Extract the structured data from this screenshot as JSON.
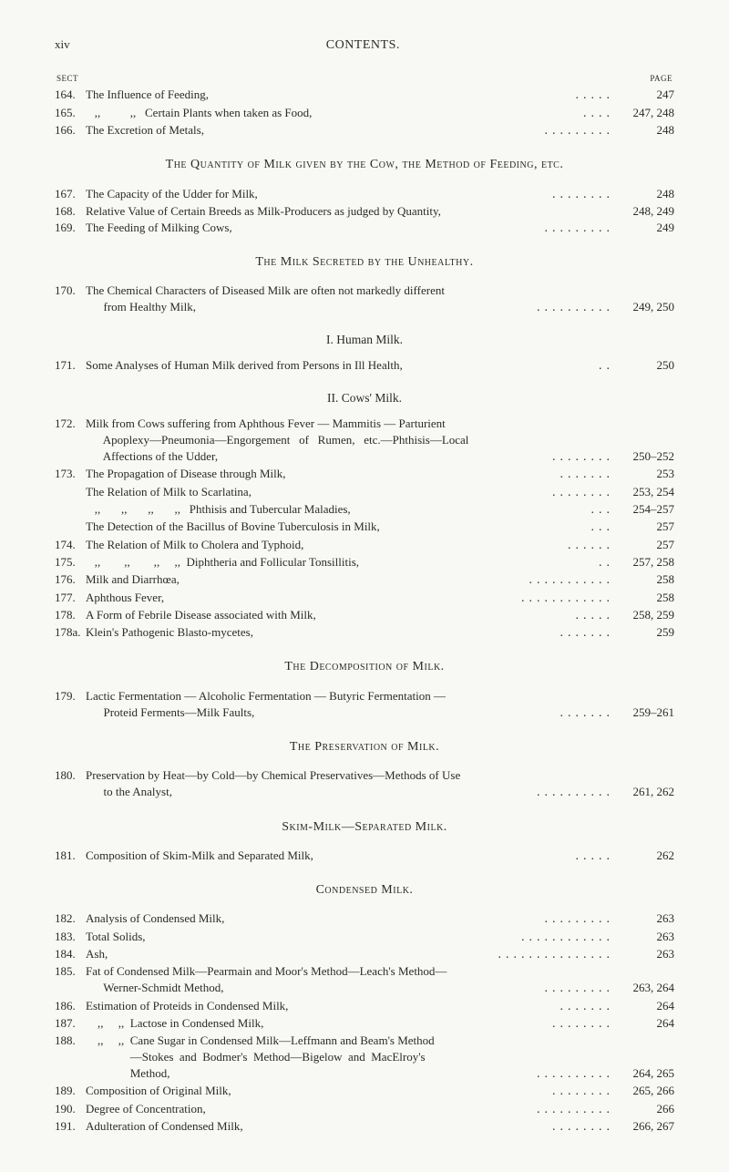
{
  "header": {
    "page_num": "xiv",
    "title": "CONTENTS."
  },
  "col_labels": {
    "left": "SECT",
    "right": "PAGE"
  },
  "block1": [
    {
      "sect": "164.",
      "desc": "The Influence of Feeding,",
      "dots": ".....",
      "pg": "247"
    },
    {
      "sect": "165.",
      "desc": "   ,,          ,,   Certain Plants when taken as Food,",
      "dots": "....",
      "pg": "247, 248"
    },
    {
      "sect": "166.",
      "desc": "The Excretion of Metals,",
      "dots": ".........",
      "pg": "248"
    }
  ],
  "heading1": "The Quantity of Milk given by the Cow, the Method of Feeding, etc.",
  "block2": [
    {
      "sect": "167.",
      "desc": "The Capacity of the Udder for Milk,",
      "dots": "........",
      "pg": "248"
    },
    {
      "sect": "168.",
      "desc": "Relative Value of Certain Breeds as Milk-Producers as judged by Quantity,",
      "dots": "",
      "pg": "248, 249"
    },
    {
      "sect": "169.",
      "desc": "The Feeding of Milking Cows,",
      "dots": ".........",
      "pg": "249"
    }
  ],
  "heading2": "The Milk Secreted by the Unhealthy.",
  "block3": [
    {
      "sect": "170.",
      "desc": "The Chemical Characters of Diseased Milk are often not markedly different",
      "dots": "",
      "pg": ""
    },
    {
      "sect": "",
      "desc": "      from Healthy Milk,",
      "dots": "..........",
      "pg": "249, 250"
    }
  ],
  "heading3": "I. Human Milk.",
  "block4": [
    {
      "sect": "171.",
      "desc": "Some Analyses of Human Milk derived from Persons in Ill Health,",
      "dots": "..",
      "pg": "250"
    }
  ],
  "heading4": "II. Cows' Milk.",
  "block5": [
    {
      "sect": "172.",
      "desc": "Milk from Cows suffering from Aphthous Fever — Mammitis — Parturient",
      "dots": "",
      "pg": ""
    },
    {
      "sect": "",
      "desc": "      Apoplexy—Pneumonia—Engorgement   of   Rumen,   etc.—Phthisis—Local",
      "dots": "",
      "pg": ""
    },
    {
      "sect": "",
      "desc": "      Affections of the Udder,",
      "dots": "........",
      "pg": "250–252"
    },
    {
      "sect": "173.",
      "desc": "The Propagation of Disease through Milk,",
      "dots": ".......",
      "pg": "253"
    },
    {
      "sect": "",
      "desc": "The Relation of Milk to Scarlatina,",
      "dots": "........",
      "pg": "253, 254"
    },
    {
      "sect": "",
      "desc": "   ,,       ,,       ,,       ,,   Phthisis and Tubercular Maladies,",
      "dots": "...",
      "pg": "254–257"
    },
    {
      "sect": "",
      "desc": "The Detection of the Bacillus of Bovine Tuberculosis in Milk,",
      "dots": "...",
      "pg": "257"
    },
    {
      "sect": "174.",
      "desc": "The Relation of Milk to Cholera and Typhoid,",
      "dots": "......",
      "pg": "257"
    },
    {
      "sect": "175.",
      "desc": "   ,,        ,,        ,,     ,,  Diphtheria and Follicular Tonsillitis,",
      "dots": "..",
      "pg": "257, 258"
    },
    {
      "sect": "176.",
      "desc": "Milk and Diarrhœa,",
      "dots": "...........",
      "pg": "258"
    },
    {
      "sect": "177.",
      "desc": "Aphthous Fever,",
      "dots": "............",
      "pg": "258"
    },
    {
      "sect": "178.",
      "desc": "A Form of Febrile Disease associated with Milk,",
      "dots": ".....",
      "pg": "258, 259"
    },
    {
      "sect": "178a.",
      "desc": "Klein's Pathogenic Blasto-mycetes,",
      "dots": ".......",
      "pg": "259"
    }
  ],
  "heading5": "The Decomposition of Milk.",
  "block6": [
    {
      "sect": "179.",
      "desc": "Lactic Fermentation — Alcoholic Fermentation — Butyric Fermentation —",
      "dots": "",
      "pg": ""
    },
    {
      "sect": "",
      "desc": "      Proteid Ferments—Milk Faults,",
      "dots": ".......",
      "pg": "259–261"
    }
  ],
  "heading6": "The Preservation of Milk.",
  "block7": [
    {
      "sect": "180.",
      "desc": "Preservation by Heat—by Cold—by Chemical Preservatives—Methods of Use",
      "dots": "",
      "pg": ""
    },
    {
      "sect": "",
      "desc": "      to the Analyst,",
      "dots": "..........",
      "pg": "261, 262"
    }
  ],
  "heading7": "Skim-Milk—Separated Milk.",
  "block8": [
    {
      "sect": "181.",
      "desc": "Composition of Skim-Milk and Separated Milk,",
      "dots": ".....",
      "pg": "262"
    }
  ],
  "heading8": "Condensed Milk.",
  "block9": [
    {
      "sect": "182.",
      "desc": "Analysis of Condensed Milk,",
      "dots": ".........",
      "pg": "263"
    },
    {
      "sect": "183.",
      "desc": "Total Solids,",
      "dots": "............",
      "pg": "263"
    },
    {
      "sect": "184.",
      "desc": "Ash,",
      "dots": "...............",
      "pg": "263"
    },
    {
      "sect": "185.",
      "desc": "Fat of Condensed Milk—Pearmain and Moor's Method—Leach's Method—",
      "dots": "",
      "pg": ""
    },
    {
      "sect": "",
      "desc": "      Werner-Schmidt Method,",
      "dots": ".........",
      "pg": "263, 264"
    },
    {
      "sect": "186.",
      "desc": "Estimation of Proteids in Condensed Milk,",
      "dots": ".......",
      "pg": "264"
    },
    {
      "sect": "187.",
      "desc": "    ,,     ,,  Lactose in Condensed Milk,",
      "dots": "........",
      "pg": "264"
    },
    {
      "sect": "188.",
      "desc": "    ,,     ,,  Cane Sugar in Condensed Milk—Leffmann and Beam's Method",
      "dots": "",
      "pg": ""
    },
    {
      "sect": "",
      "desc": "               —Stokes  and  Bodmer's  Method—Bigelow  and  MacElroy's",
      "dots": "",
      "pg": ""
    },
    {
      "sect": "",
      "desc": "               Method,",
      "dots": "..........",
      "pg": "264, 265"
    },
    {
      "sect": "189.",
      "desc": "Composition of Original Milk,",
      "dots": "........",
      "pg": "265, 266"
    },
    {
      "sect": "190.",
      "desc": "Degree of Concentration,",
      "dots": "..........",
      "pg": "266"
    },
    {
      "sect": "191.",
      "desc": "Adulteration of Condensed Milk,",
      "dots": "........",
      "pg": "266, 267"
    }
  ]
}
